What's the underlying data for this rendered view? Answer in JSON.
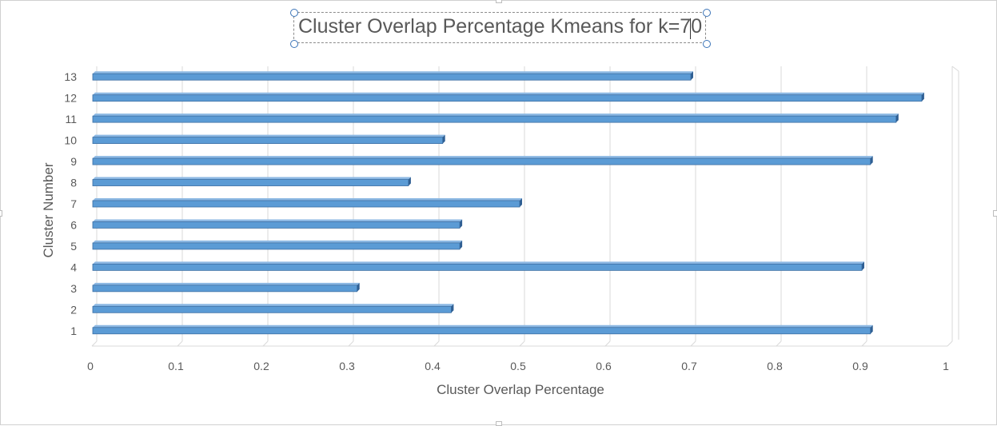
{
  "chart_data": {
    "type": "bar",
    "orientation": "horizontal",
    "title": "Cluster Overlap Percentage Kmeans for k=70",
    "xlabel": "Cluster Overlap Percentage",
    "ylabel": "Cluster Number",
    "categories": [
      "1",
      "2",
      "3",
      "4",
      "5",
      "6",
      "7",
      "8",
      "9",
      "10",
      "11",
      "12",
      "13"
    ],
    "values": [
      0.91,
      0.42,
      0.31,
      0.9,
      0.43,
      0.43,
      0.5,
      0.37,
      0.91,
      0.41,
      0.94,
      0.97,
      0.7
    ],
    "xlim": [
      0,
      1
    ],
    "xticks": [
      "0",
      "0.1",
      "0.2",
      "0.3",
      "0.4",
      "0.5",
      "0.6",
      "0.7",
      "0.8",
      "0.9",
      "1"
    ],
    "grid": true,
    "legend": "none",
    "bar_color": "#5b9bd5",
    "bar_edge_color": "#3d6fa3"
  }
}
